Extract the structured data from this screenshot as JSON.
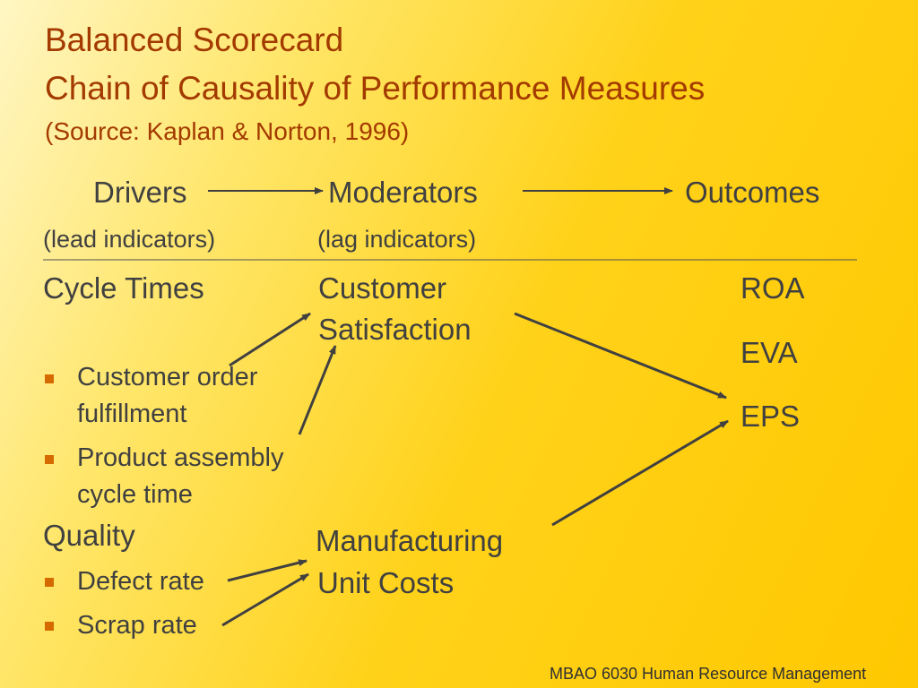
{
  "title": {
    "line1": "Balanced Scorecard",
    "line2": "Chain of Causality of Performance Measures",
    "source": "(Source: Kaplan & Norton, 1996)"
  },
  "header": {
    "drivers": "Drivers",
    "moderators": "Moderators",
    "outcomes": "Outcomes",
    "lead": "(lead indicators)",
    "lag": "(lag indicators)"
  },
  "drivers": {
    "cycle_times": "Cycle Times",
    "cycle_items": [
      "Customer order",
      "fulfillment",
      "Product assembly",
      "cycle time"
    ],
    "quality": "Quality",
    "quality_items": [
      "Defect rate",
      "Scrap rate"
    ]
  },
  "moderators": {
    "customer_line1": "Customer",
    "customer_line2": "Satisfaction",
    "manufacturing_line1": "Manufacturing",
    "manufacturing_line2": "Unit Costs"
  },
  "outcomes": [
    "ROA",
    "EVA",
    "EPS"
  ],
  "footer": "MBAO 6030 Human Resource Management",
  "colors": {
    "title": "#a33a00",
    "arrow": "#404040",
    "bullet": "#d56a00"
  }
}
